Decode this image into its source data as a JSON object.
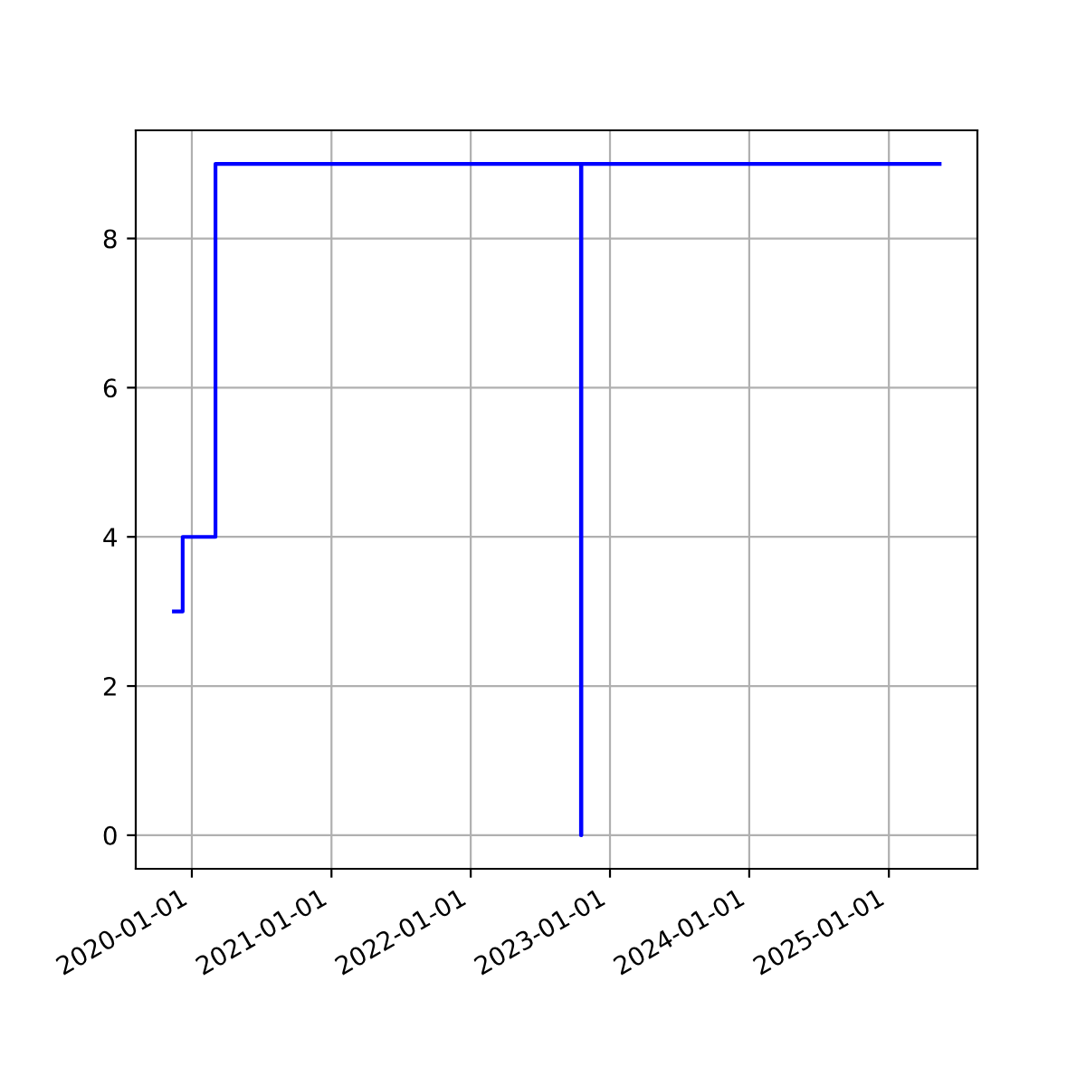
{
  "chart_data": {
    "type": "step",
    "x": [
      "2019-11-15",
      "2019-12-08",
      "2020-03-03",
      "2022-10-17",
      "2022-10-18",
      "2025-05-14"
    ],
    "series": [
      {
        "color": "#0000ff",
        "values": [
          3,
          4,
          9,
          0,
          9,
          9
        ]
      }
    ],
    "xlim": [
      "2019-08-07",
      "2025-08-21"
    ],
    "xticks": [
      {
        "value": "2020-01-01",
        "label": "2020-01-01"
      },
      {
        "value": "2021-01-01",
        "label": "2021-01-01"
      },
      {
        "value": "2022-01-01",
        "label": "2022-01-01"
      },
      {
        "value": "2023-01-01",
        "label": "2023-01-01"
      },
      {
        "value": "2024-01-01",
        "label": "2024-01-01"
      },
      {
        "value": "2025-01-01",
        "label": "2025-01-01"
      }
    ],
    "ylim": [
      -0.45,
      9.45
    ],
    "yticks": [
      0,
      2,
      4,
      6,
      8
    ],
    "grid": true,
    "line_style": "solid"
  }
}
